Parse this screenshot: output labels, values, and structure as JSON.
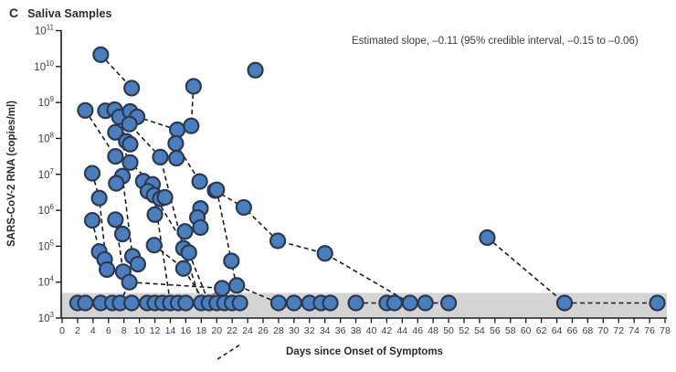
{
  "panel": {
    "letter": "C",
    "title": "Saliva Samples"
  },
  "annotation": "Estimated slope, –0.11 (95% credible interval, –0.15 to –0.06)",
  "chart_data": {
    "type": "scatter",
    "title": "Saliva Samples",
    "xlabel": "Days since Onset of Symptoms",
    "ylabel": "SARS-CoV-2 RNA (copies/ml)",
    "x_range": [
      0,
      78
    ],
    "x_ticks": [
      0,
      2,
      4,
      6,
      8,
      10,
      12,
      14,
      16,
      18,
      20,
      22,
      24,
      26,
      28,
      30,
      32,
      34,
      36,
      38,
      40,
      42,
      44,
      46,
      48,
      50,
      52,
      54,
      56,
      58,
      60,
      62,
      64,
      66,
      68,
      70,
      72,
      74,
      76,
      78
    ],
    "y_log_exponents": [
      11,
      10,
      9,
      8,
      7,
      6,
      5,
      4,
      3
    ],
    "y_tick_base": "10",
    "grid": false,
    "legend": "none",
    "detection_band": {
      "top_log": 3.7,
      "bottom_log": 3.0,
      "color": "#d4d4d4"
    },
    "nd_value_log": 3.42,
    "nd_days": [
      2,
      3,
      5,
      6.5,
      7.5,
      9,
      11,
      12,
      13,
      14,
      15,
      16,
      18,
      19,
      20,
      21,
      22,
      23,
      28,
      30,
      32,
      33.5,
      34.7,
      38,
      42,
      43,
      45,
      47,
      50,
      65,
      77
    ],
    "points_day_log": [
      [
        5,
        10.33
      ],
      [
        9,
        9.4
      ],
      [
        25,
        9.9
      ],
      [
        17,
        9.45
      ],
      [
        3,
        8.78
      ],
      [
        5.6,
        8.77
      ],
      [
        6.8,
        8.8
      ],
      [
        7.4,
        8.6
      ],
      [
        8.8,
        8.75
      ],
      [
        9.7,
        8.6
      ],
      [
        8.7,
        8.4
      ],
      [
        6.9,
        8.17
      ],
      [
        14.9,
        8.24
      ],
      [
        16.7,
        8.35
      ],
      [
        14.7,
        7.86
      ],
      [
        8.3,
        7.92
      ],
      [
        8.8,
        7.84
      ],
      [
        12.7,
        7.48
      ],
      [
        6.9,
        7.5
      ],
      [
        8.8,
        7.33
      ],
      [
        14.8,
        7.45
      ],
      [
        3.9,
        7.03
      ],
      [
        7.8,
        6.95
      ],
      [
        7.0,
        6.75
      ],
      [
        10.5,
        6.81
      ],
      [
        11.7,
        6.72
      ],
      [
        11.1,
        6.53
      ],
      [
        11.9,
        6.42
      ],
      [
        12.7,
        6.32
      ],
      [
        13.3,
        6.36
      ],
      [
        4.8,
        6.34
      ],
      [
        17.8,
        6.8
      ],
      [
        19.8,
        6.55
      ],
      [
        23.5,
        6.08
      ],
      [
        20,
        6.57
      ],
      [
        12,
        5.88
      ],
      [
        17.9,
        6.05
      ],
      [
        17.5,
        5.8
      ],
      [
        17.9,
        5.52
      ],
      [
        15.9,
        5.41
      ],
      [
        7.8,
        5.34
      ],
      [
        3.9,
        5.72
      ],
      [
        6.9,
        5.74
      ],
      [
        11.9,
        5.03
      ],
      [
        15.7,
        4.94
      ],
      [
        16.4,
        4.82
      ],
      [
        27.9,
        5.15
      ],
      [
        34,
        4.8
      ],
      [
        55,
        5.24
      ],
      [
        4.8,
        4.85
      ],
      [
        5.5,
        4.63
      ],
      [
        5.8,
        4.35
      ],
      [
        7.9,
        4.29
      ],
      [
        9.1,
        4.72
      ],
      [
        9.8,
        4.5
      ],
      [
        8.7,
        4.0
      ],
      [
        15.7,
        4.38
      ],
      [
        21.9,
        4.59
      ],
      [
        20.7,
        3.83
      ],
      [
        22.6,
        3.91
      ]
    ],
    "trajectories_day_log": [
      [
        [
          5,
          10.33
        ],
        [
          9,
          9.4
        ]
      ],
      [
        [
          17,
          9.45
        ],
        [
          16.7,
          8.35
        ]
      ],
      [
        [
          3,
          8.78
        ],
        [
          6.9,
          7.5
        ]
      ],
      [
        [
          5.6,
          8.77
        ],
        [
          7.4,
          8.6
        ],
        [
          8.3,
          7.92
        ],
        [
          8.8,
          7.84
        ]
      ],
      [
        [
          6.8,
          8.8
        ],
        [
          8.7,
          8.4
        ],
        [
          12.7,
          7.48
        ],
        [
          15.7,
          4.94
        ],
        [
          18,
          3.42
        ]
      ],
      [
        [
          8.8,
          8.75
        ],
        [
          9.7,
          8.6
        ],
        [
          14.9,
          8.24
        ]
      ],
      [
        [
          6.9,
          8.17
        ],
        [
          8.8,
          7.33
        ],
        [
          11.7,
          6.72
        ],
        [
          14,
          3.42
        ]
      ],
      [
        [
          14.7,
          7.86
        ],
        [
          17.8,
          6.8
        ],
        [
          19.8,
          6.55
        ],
        [
          23.5,
          6.08
        ],
        [
          27.9,
          5.15
        ],
        [
          34,
          4.8
        ],
        [
          45,
          3.42
        ]
      ],
      [
        [
          3.9,
          7.03
        ],
        [
          4.8,
          6.34
        ],
        [
          5.8,
          4.35
        ]
      ],
      [
        [
          7.8,
          6.95
        ],
        [
          9.1,
          4.72
        ],
        [
          9.8,
          4.5
        ]
      ],
      [
        [
          3.9,
          5.72
        ],
        [
          4.8,
          4.85
        ],
        [
          5.5,
          4.63
        ]
      ],
      [
        [
          6.9,
          5.74
        ],
        [
          7.9,
          4.29
        ]
      ],
      [
        [
          7.5,
          3.42
        ],
        [
          8.7,
          4.0
        ],
        [
          20.7,
          3.83
        ],
        [
          22.6,
          3.91
        ],
        [
          28,
          3.42
        ]
      ],
      [
        [
          10.5,
          6.81
        ],
        [
          11.9,
          6.42
        ],
        [
          16.4,
          4.82
        ],
        [
          19,
          3.42
        ]
      ],
      [
        [
          11.9,
          5.03
        ],
        [
          15.7,
          4.38
        ],
        [
          18.5,
          3.42
        ]
      ],
      [
        [
          20,
          6.57
        ],
        [
          21.9,
          4.59
        ],
        [
          23,
          3.42
        ]
      ],
      [
        [
          55,
          5.24
        ],
        [
          65,
          3.42
        ]
      ],
      [
        [
          2,
          3.42
        ],
        [
          9,
          3.42
        ]
      ],
      [
        [
          11,
          3.42
        ],
        [
          23,
          3.42
        ]
      ],
      [
        [
          28,
          3.42
        ],
        [
          35,
          3.42
        ]
      ],
      [
        [
          38,
          3.42
        ],
        [
          50,
          3.42
        ]
      ],
      [
        [
          65,
          3.42
        ],
        [
          77,
          3.42
        ]
      ]
    ],
    "red_segment_day_log": [
      [
        18,
        3.42
      ],
      [
        20.7,
        3.83
      ]
    ],
    "colors": {
      "marker_fill": "#4a7ebf",
      "marker_stroke": "#2c3a50",
      "line": "#1c1c1c",
      "red_line": "#e05a4e",
      "axis": "#1c1c1c",
      "tick_text": "#3c3c3c",
      "band": "#d4d4d4"
    }
  }
}
